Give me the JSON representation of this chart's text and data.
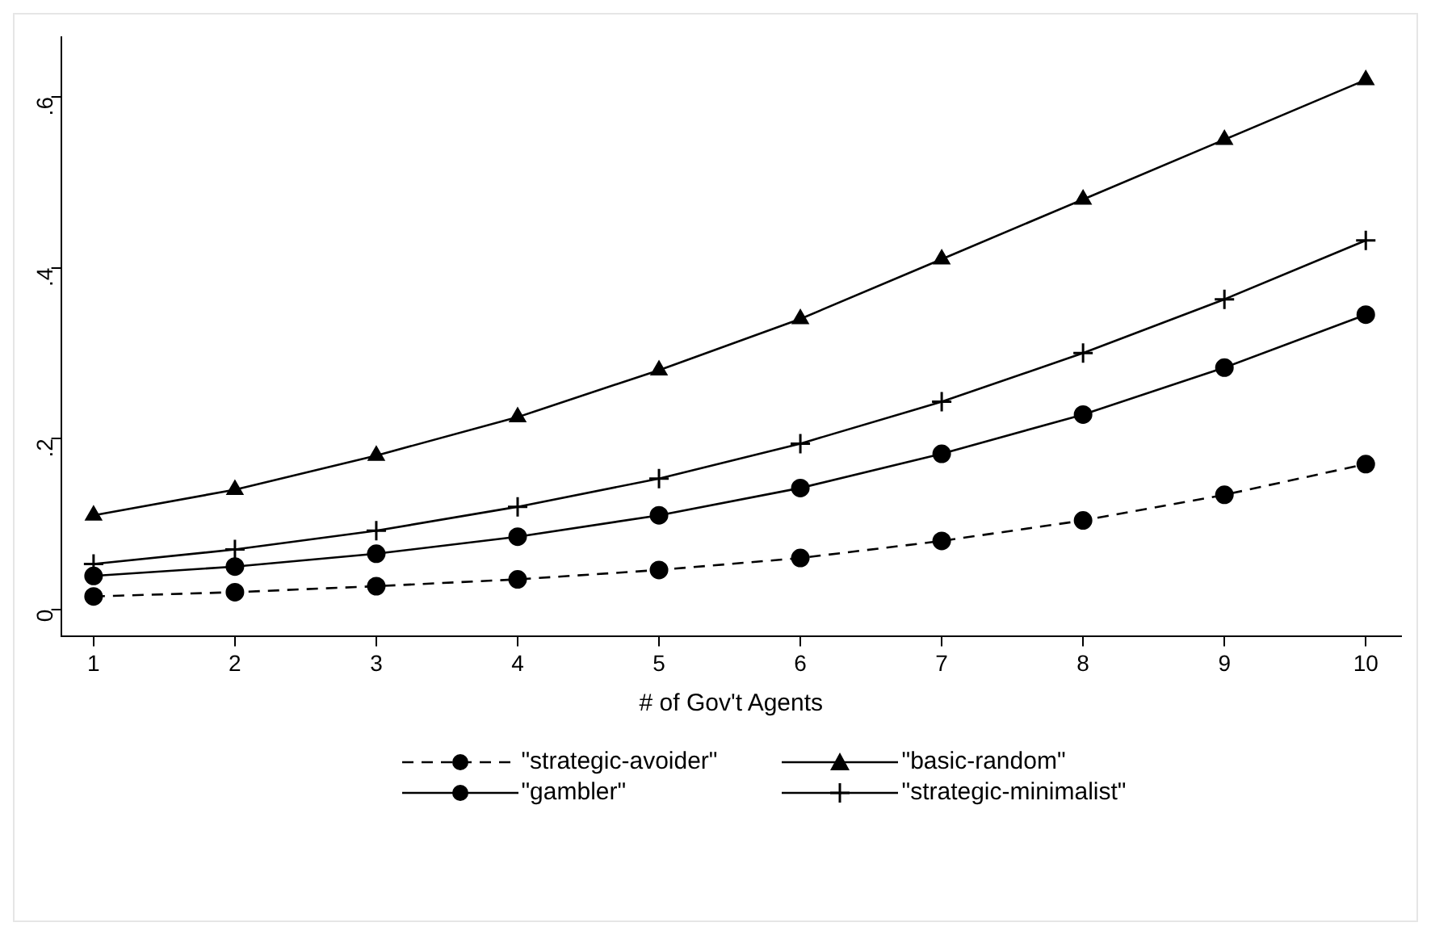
{
  "chart_data": {
    "type": "line",
    "xlabel": "# of Gov't Agents",
    "x": [
      1,
      2,
      3,
      4,
      5,
      6,
      7,
      8,
      9,
      10
    ],
    "xlim": [
      0.77,
      10.25
    ],
    "xticks": [
      1,
      2,
      3,
      4,
      5,
      6,
      7,
      8,
      9,
      10
    ],
    "ylim": [
      -0.032,
      0.67
    ],
    "yticks": [
      {
        "value": 0,
        "label": "0"
      },
      {
        "value": 0.2,
        "label": ".2"
      },
      {
        "value": 0.4,
        "label": ".4"
      },
      {
        "value": 0.6,
        "label": ".6"
      }
    ],
    "grid": false,
    "legend": "bottom",
    "series": [
      {
        "name": "\"strategic-avoider\"",
        "color": "#000000",
        "marker": "circle",
        "line_style": "dashed",
        "values": [
          0.015,
          0.02,
          0.027,
          0.035,
          0.046,
          0.06,
          0.08,
          0.104,
          0.134,
          0.17
        ]
      },
      {
        "name": "\"basic-random\"",
        "color": "#000000",
        "marker": "triangle",
        "line_style": "solid",
        "values": [
          0.11,
          0.14,
          0.18,
          0.225,
          0.28,
          0.34,
          0.41,
          0.48,
          0.55,
          0.62
        ]
      },
      {
        "name": "\"gambler\"",
        "color": "#000000",
        "marker": "circle",
        "line_style": "solid",
        "values": [
          0.039,
          0.05,
          0.065,
          0.085,
          0.11,
          0.142,
          0.182,
          0.228,
          0.283,
          0.345
        ]
      },
      {
        "name": "\"strategic-minimalist\"",
        "color": "#000000",
        "marker": "cross",
        "line_style": "solid",
        "values": [
          0.053,
          0.07,
          0.092,
          0.12,
          0.153,
          0.194,
          0.243,
          0.3,
          0.363,
          0.432
        ]
      }
    ]
  }
}
